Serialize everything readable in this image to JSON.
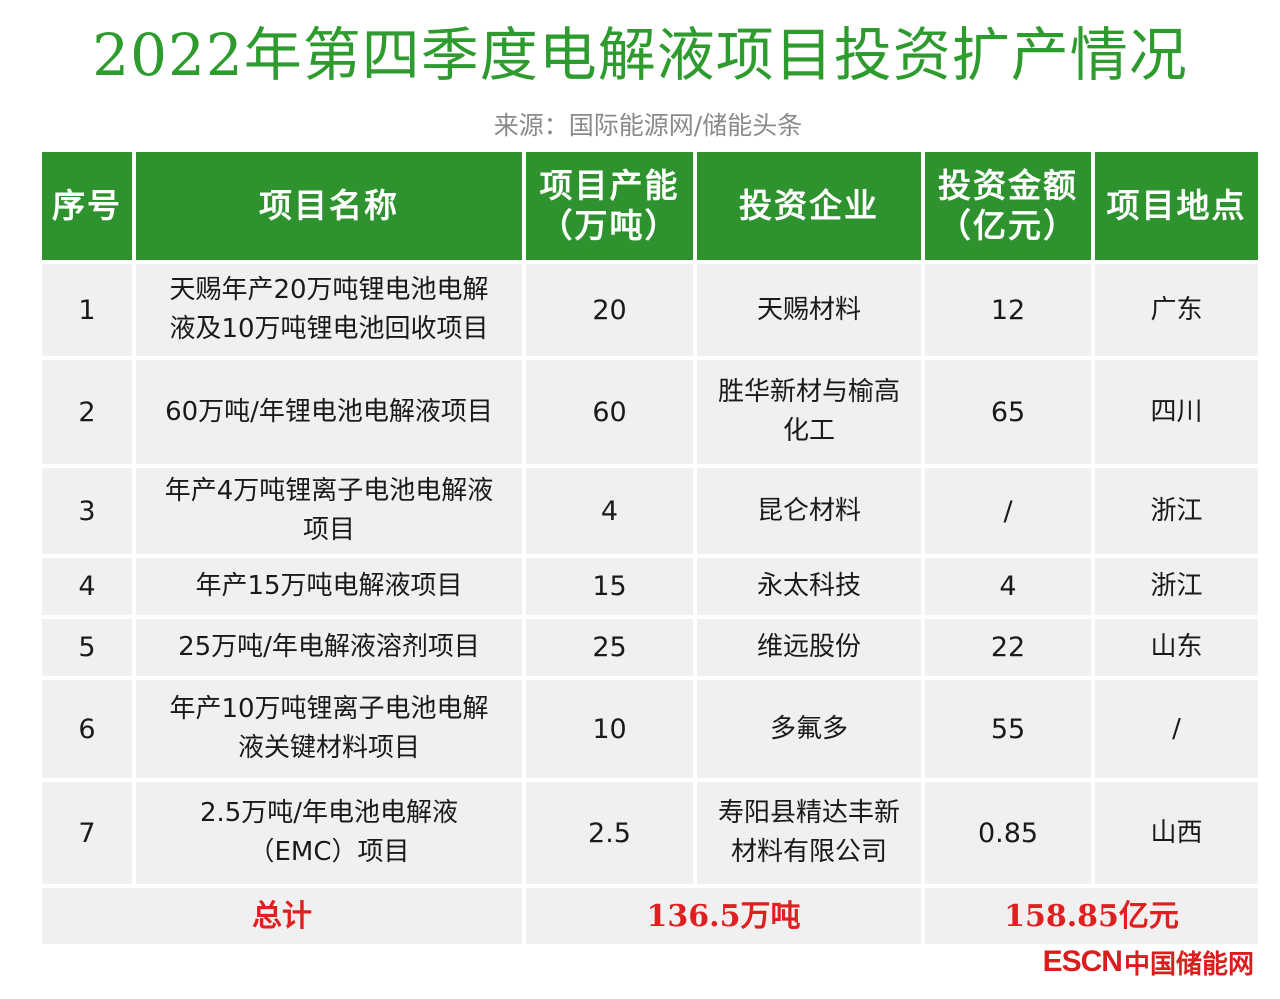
{
  "title": "2022年第四季度电解液项目投资扩产情况",
  "source": "来源：国际能源网/储能头条",
  "table": {
    "headers": [
      [
        "序号"
      ],
      [
        "项目名称"
      ],
      [
        "项目产能",
        "（万吨）"
      ],
      [
        "投资企业"
      ],
      [
        "投资金额",
        "（亿元）"
      ],
      [
        "项目地点"
      ]
    ],
    "rows": [
      {
        "no": "1",
        "name": [
          "天赐年产20万吨锂电池电解",
          "液及10万吨锂电池回收项目"
        ],
        "capacity": "20",
        "company": [
          "天赐材料"
        ],
        "amount": "12",
        "location": "广东"
      },
      {
        "no": "2",
        "name": [
          "60万吨/年锂电池电解液项目"
        ],
        "capacity": "60",
        "company": [
          "胜华新材与榆高",
          "化工"
        ],
        "amount": "65",
        "location": "四川"
      },
      {
        "no": "3",
        "name": [
          "年产4万吨锂离子电池电解液",
          "项目"
        ],
        "capacity": "4",
        "company": [
          "昆仑材料"
        ],
        "amount": "/",
        "location": "浙江"
      },
      {
        "no": "4",
        "name": [
          "年产15万吨电解液项目"
        ],
        "capacity": "15",
        "company": [
          "永太科技"
        ],
        "amount": "4",
        "location": "浙江"
      },
      {
        "no": "5",
        "name": [
          "25万吨/年电解液溶剂项目"
        ],
        "capacity": "25",
        "company": [
          "维远股份"
        ],
        "amount": "22",
        "location": "山东"
      },
      {
        "no": "6",
        "name": [
          "年产10万吨锂离子电池电解",
          "液关键材料项目"
        ],
        "capacity": "10",
        "company": [
          "多氟多"
        ],
        "amount": "55",
        "location": "/"
      },
      {
        "no": "7",
        "name": [
          "2.5万吨/年电池电解液",
          "（EMC）项目"
        ],
        "capacity": "2.5",
        "company": [
          "寿阳县精达丰新",
          "材料有限公司"
        ],
        "amount": "0.85",
        "location": "山西"
      }
    ],
    "total": {
      "label": "总计",
      "capacity": "136.5万吨",
      "amount": "158.85亿元"
    }
  },
  "logo": {
    "latin": "ESCN",
    "cn": "中国储能网",
    "color": "#d81e1e"
  },
  "colors": {
    "title": "#2d9b2d",
    "header_bg": "#2e932e",
    "cell_bg": "#f0f0f0",
    "total_text": "#e02020"
  }
}
